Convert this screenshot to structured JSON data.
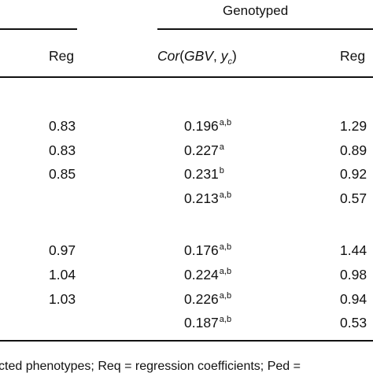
{
  "header": {
    "group_label": "Genotyped",
    "col_reg_left": "Reg",
    "col_cor": "Cor",
    "col_cor_args_open": "(",
    "col_cor_gbv": "GBV",
    "col_cor_sep": ", ",
    "col_cor_y": "y",
    "col_cor_sub": "c",
    "col_cor_args_close": ")",
    "col_reg_right": "Reg"
  },
  "group1": {
    "rows": [
      {
        "reg_left": "0.83",
        "cor": "0.196",
        "cor_sup": "a,b",
        "reg_right": "1.29"
      },
      {
        "reg_left": "0.83",
        "cor": "0.227",
        "cor_sup": "a",
        "reg_right": "0.89"
      },
      {
        "reg_left": "0.85",
        "cor": "0.231",
        "cor_sup": "b",
        "reg_right": "0.92"
      },
      {
        "reg_left": "",
        "cor": "0.213",
        "cor_sup": "a,b",
        "reg_right": "0.57"
      }
    ]
  },
  "group2": {
    "rows": [
      {
        "reg_left": "0.97",
        "cor": "0.176",
        "cor_sup": "a,b",
        "reg_right": "1.44"
      },
      {
        "reg_left": "1.04",
        "cor": "0.224",
        "cor_sup": "a,b",
        "reg_right": "0.98"
      },
      {
        "reg_left": "1.03",
        "cor": "0.226",
        "cor_sup": "a,b",
        "reg_right": "0.94"
      },
      {
        "reg_left": "",
        "cor": "0.187",
        "cor_sup": "a,b",
        "reg_right": "0.53"
      }
    ]
  },
  "footer": {
    "text": "cted phenotypes; Req = regression coefficients; Ped ="
  }
}
